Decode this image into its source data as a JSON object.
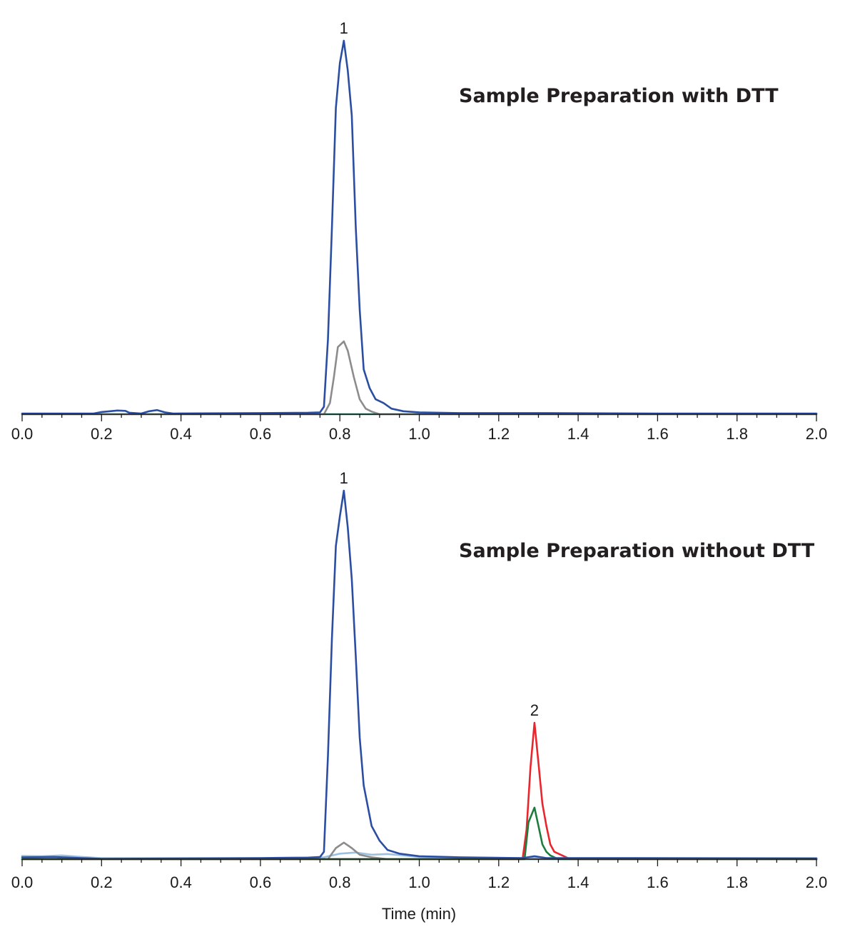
{
  "chart_data": [
    {
      "type": "line",
      "title": "Sample Preparation with DTT",
      "xlabel": "",
      "ylabel": "",
      "xlim": [
        0.0,
        2.0
      ],
      "ylim": [
        0,
        100
      ],
      "x_ticks": [
        "0.0",
        "0.2",
        "0.4",
        "0.6",
        "0.8",
        "1.0",
        "1.2",
        "1.4",
        "1.6",
        "1.8",
        "2.0"
      ],
      "grid": false,
      "colors": {
        "blue": "#2b4ea2",
        "gray": "#8c8c8c",
        "teal": "#1a9a86"
      },
      "peak_labels": [
        {
          "text": "1",
          "x": 0.81,
          "y": 100
        }
      ],
      "series": [
        {
          "color": "#1a9a86",
          "points": [
            [
              0.0,
              0
            ],
            [
              2.0,
              0
            ]
          ]
        },
        {
          "color": "#8c8c8c",
          "points": [
            [
              0.0,
              0
            ],
            [
              0.76,
              0
            ],
            [
              0.775,
              3
            ],
            [
              0.785,
              10
            ],
            [
              0.795,
              18
            ],
            [
              0.81,
              19.5
            ],
            [
              0.82,
              17
            ],
            [
              0.835,
              10
            ],
            [
              0.85,
              4
            ],
            [
              0.865,
              1.5
            ],
            [
              0.88,
              0.7
            ],
            [
              0.9,
              0
            ],
            [
              2.0,
              0
            ]
          ]
        },
        {
          "color": "#2b4ea2",
          "points": [
            [
              0.0,
              0.2
            ],
            [
              0.1,
              0.2
            ],
            [
              0.18,
              0.2
            ],
            [
              0.2,
              0.6
            ],
            [
              0.24,
              1.0
            ],
            [
              0.26,
              0.9
            ],
            [
              0.27,
              0.4
            ],
            [
              0.3,
              0.2
            ],
            [
              0.32,
              0.8
            ],
            [
              0.34,
              1.1
            ],
            [
              0.36,
              0.5
            ],
            [
              0.38,
              0.2
            ],
            [
              0.6,
              0.3
            ],
            [
              0.72,
              0.4
            ],
            [
              0.75,
              0.5
            ],
            [
              0.76,
              2
            ],
            [
              0.77,
              20
            ],
            [
              0.78,
              50
            ],
            [
              0.79,
              82
            ],
            [
              0.8,
              94
            ],
            [
              0.81,
              100
            ],
            [
              0.82,
              92
            ],
            [
              0.83,
              80
            ],
            [
              0.84,
              50
            ],
            [
              0.85,
              28
            ],
            [
              0.86,
              12
            ],
            [
              0.875,
              7
            ],
            [
              0.89,
              4
            ],
            [
              0.91,
              3
            ],
            [
              0.93,
              1.5
            ],
            [
              0.96,
              0.8
            ],
            [
              1.0,
              0.5
            ],
            [
              1.1,
              0.3
            ],
            [
              1.3,
              0.3
            ],
            [
              1.6,
              0.2
            ],
            [
              2.0,
              0.2
            ]
          ]
        }
      ]
    },
    {
      "type": "line",
      "title": "Sample Preparation without DTT",
      "xlabel": "Time (min)",
      "ylabel": "",
      "xlim": [
        0.0,
        2.0
      ],
      "ylim": [
        0,
        100
      ],
      "x_ticks": [
        "0.0",
        "0.2",
        "0.4",
        "0.6",
        "0.8",
        "1.0",
        "1.2",
        "1.4",
        "1.6",
        "1.8",
        "2.0"
      ],
      "grid": false,
      "colors": {
        "blue": "#2b4ea2",
        "gray": "#8c8c8c",
        "light_blue": "#9cc0e0",
        "teal": "#1a9a86",
        "red": "#e8262c",
        "green": "#1e7d3e"
      },
      "peak_labels": [
        {
          "text": "1",
          "x": 0.81,
          "y": 100
        },
        {
          "text": "2",
          "x": 1.29,
          "y": 37
        }
      ],
      "series": [
        {
          "color": "#1a9a86",
          "points": [
            [
              0.0,
              0
            ],
            [
              2.0,
              0
            ]
          ]
        },
        {
          "color": "#9cc0e0",
          "points": [
            [
              0.0,
              0.9
            ],
            [
              0.05,
              0.8
            ],
            [
              0.1,
              1.0
            ],
            [
              0.15,
              0.6
            ],
            [
              0.2,
              0.3
            ],
            [
              0.6,
              0.3
            ],
            [
              0.76,
              0.5
            ],
            [
              0.8,
              1.5
            ],
            [
              0.84,
              1.8
            ],
            [
              0.88,
              1.2
            ],
            [
              0.92,
              1.4
            ],
            [
              0.96,
              1.0
            ],
            [
              1.0,
              0.6
            ],
            [
              1.1,
              0.4
            ],
            [
              1.3,
              0.3
            ],
            [
              2.0,
              0.3
            ]
          ]
        },
        {
          "color": "#8c8c8c",
          "points": [
            [
              0.0,
              0
            ],
            [
              0.77,
              0
            ],
            [
              0.79,
              3
            ],
            [
              0.81,
              4.5
            ],
            [
              0.83,
              3
            ],
            [
              0.85,
              1.2
            ],
            [
              0.88,
              0.5
            ],
            [
              0.92,
              0
            ],
            [
              2.0,
              0
            ]
          ]
        },
        {
          "color": "#e8262c",
          "points": [
            [
              0.0,
              0
            ],
            [
              1.26,
              0
            ],
            [
              1.27,
              8
            ],
            [
              1.28,
              25
            ],
            [
              1.29,
              37
            ],
            [
              1.3,
              26
            ],
            [
              1.31,
              15
            ],
            [
              1.32,
              9
            ],
            [
              1.33,
              4
            ],
            [
              1.34,
              2
            ],
            [
              1.36,
              1
            ],
            [
              1.38,
              0
            ],
            [
              2.0,
              0
            ]
          ]
        },
        {
          "color": "#1e7d3e",
          "points": [
            [
              0.0,
              0
            ],
            [
              1.265,
              0
            ],
            [
              1.275,
              10
            ],
            [
              1.29,
              14
            ],
            [
              1.3,
              9
            ],
            [
              1.31,
              4
            ],
            [
              1.32,
              2
            ],
            [
              1.33,
              1
            ],
            [
              1.35,
              0
            ],
            [
              2.0,
              0
            ]
          ]
        },
        {
          "color": "#2b4ea2",
          "points": [
            [
              0.0,
              0.5
            ],
            [
              0.08,
              0.6
            ],
            [
              0.15,
              0.3
            ],
            [
              0.2,
              0.1
            ],
            [
              0.6,
              0.3
            ],
            [
              0.72,
              0.4
            ],
            [
              0.75,
              0.6
            ],
            [
              0.76,
              2
            ],
            [
              0.77,
              28
            ],
            [
              0.78,
              60
            ],
            [
              0.79,
              85
            ],
            [
              0.8,
              93
            ],
            [
              0.81,
              100
            ],
            [
              0.82,
              90
            ],
            [
              0.83,
              76
            ],
            [
              0.84,
              55
            ],
            [
              0.85,
              33
            ],
            [
              0.86,
              20
            ],
            [
              0.88,
              9
            ],
            [
              0.9,
              5
            ],
            [
              0.92,
              2.5
            ],
            [
              0.95,
              1.5
            ],
            [
              1.0,
              0.8
            ],
            [
              1.1,
              0.5
            ],
            [
              1.26,
              0.3
            ],
            [
              1.29,
              0.8
            ],
            [
              1.32,
              0.3
            ],
            [
              1.5,
              0.3
            ],
            [
              2.0,
              0.2
            ]
          ]
        }
      ]
    }
  ]
}
